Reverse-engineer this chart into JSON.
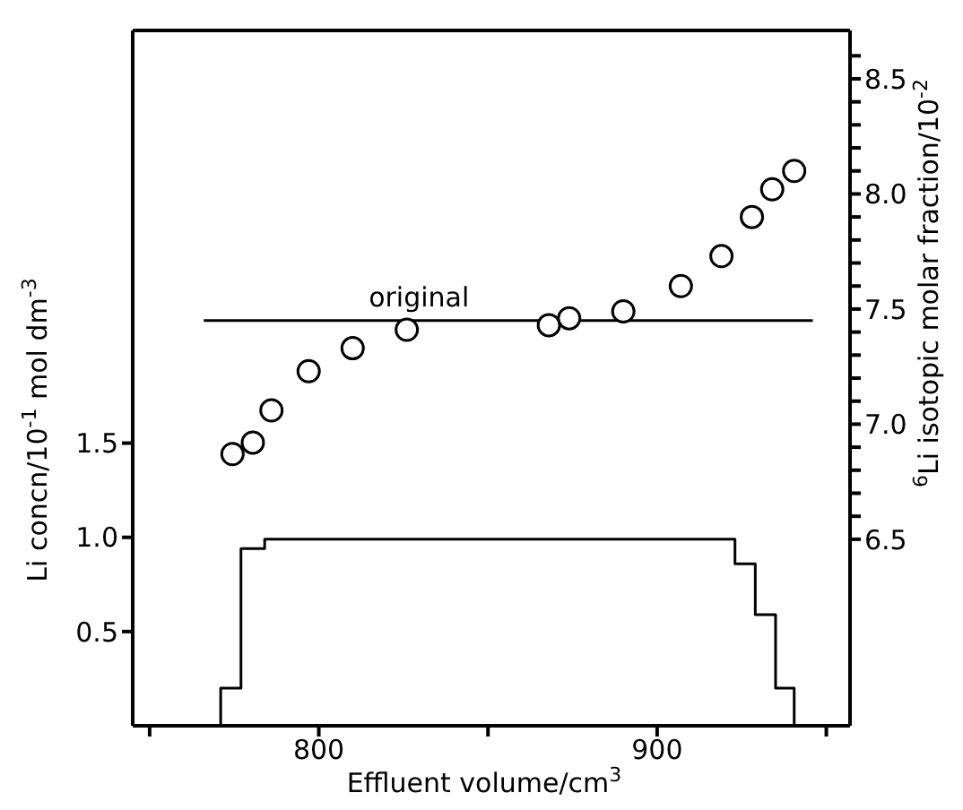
{
  "chart_data": {
    "type": "scatter",
    "xlabel": "Effluent volume/cm$^{3}$",
    "ylabel": "Li concn/10$^{-1}$ mol dm$^{-3}$",
    "y2label": "$^{6}$Li isotopic molar fraction/10$^{-2}$",
    "xlim": [
      745,
      957
    ],
    "xticks": [
      {
        "value": 750,
        "label": null
      },
      800,
      {
        "value": 850,
        "label": null
      },
      900,
      {
        "value": 950,
        "label": null
      }
    ],
    "ylim": [
      0,
      3.69
    ],
    "yticks": [
      0.5,
      {
        "value": 1,
        "label": "1.0"
      },
      1.5
    ],
    "y2lim": [
      5.69,
      8.71
    ],
    "y2ticks": [
      6.5,
      {
        "value": 6.6,
        "label": null
      },
      {
        "value": 6.7,
        "label": null
      },
      {
        "value": 6.8,
        "label": null
      },
      {
        "value": 6.9,
        "label": null
      },
      {
        "value": 7,
        "label": "7.0"
      },
      {
        "value": 7.1,
        "label": null
      },
      {
        "value": 7.2,
        "label": null
      },
      {
        "value": 7.3,
        "label": null
      },
      {
        "value": 7.4,
        "label": null
      },
      7.5,
      {
        "value": 7.6,
        "label": null
      },
      {
        "value": 7.7,
        "label": null
      },
      {
        "value": 7.8,
        "label": null
      },
      {
        "value": 7.9,
        "label": null
      },
      {
        "value": 8,
        "label": "8.0"
      },
      {
        "value": 8.1,
        "label": null
      },
      {
        "value": 8.2,
        "label": null
      },
      {
        "value": 8.3,
        "label": null
      },
      {
        "value": 8.4,
        "label": null
      },
      8.5,
      {
        "value": 8.6,
        "label": null
      }
    ],
    "grid": false,
    "legend": false,
    "series": [
      {
        "type": "step",
        "color": "#000000",
        "axis": "y",
        "marker": "none",
        "x": [
          771,
          771,
          777,
          784,
          923,
          929,
          935,
          940.5
        ],
        "values": [
          0,
          0.2,
          0.94,
          0.99,
          0.86,
          0.59,
          0.2,
          0
        ]
      },
      {
        "type": "line",
        "name": "original",
        "color": "#000000",
        "axis": "y2",
        "marker": "none",
        "x": [
          766,
          946
        ],
        "values": [
          7.45,
          7.45
        ]
      },
      {
        "color": "#000000",
        "axis": "y2",
        "marker": "circle",
        "x": [
          774.5,
          780.5,
          786,
          797,
          810,
          826,
          868,
          874,
          890,
          907,
          919,
          928,
          934,
          940.5
        ],
        "values": [
          6.87,
          6.92,
          7.06,
          7.23,
          7.33,
          7.41,
          7.43,
          7.46,
          7.49,
          7.6,
          7.73,
          7.9,
          8.02,
          8.1
        ]
      }
    ]
  }
}
